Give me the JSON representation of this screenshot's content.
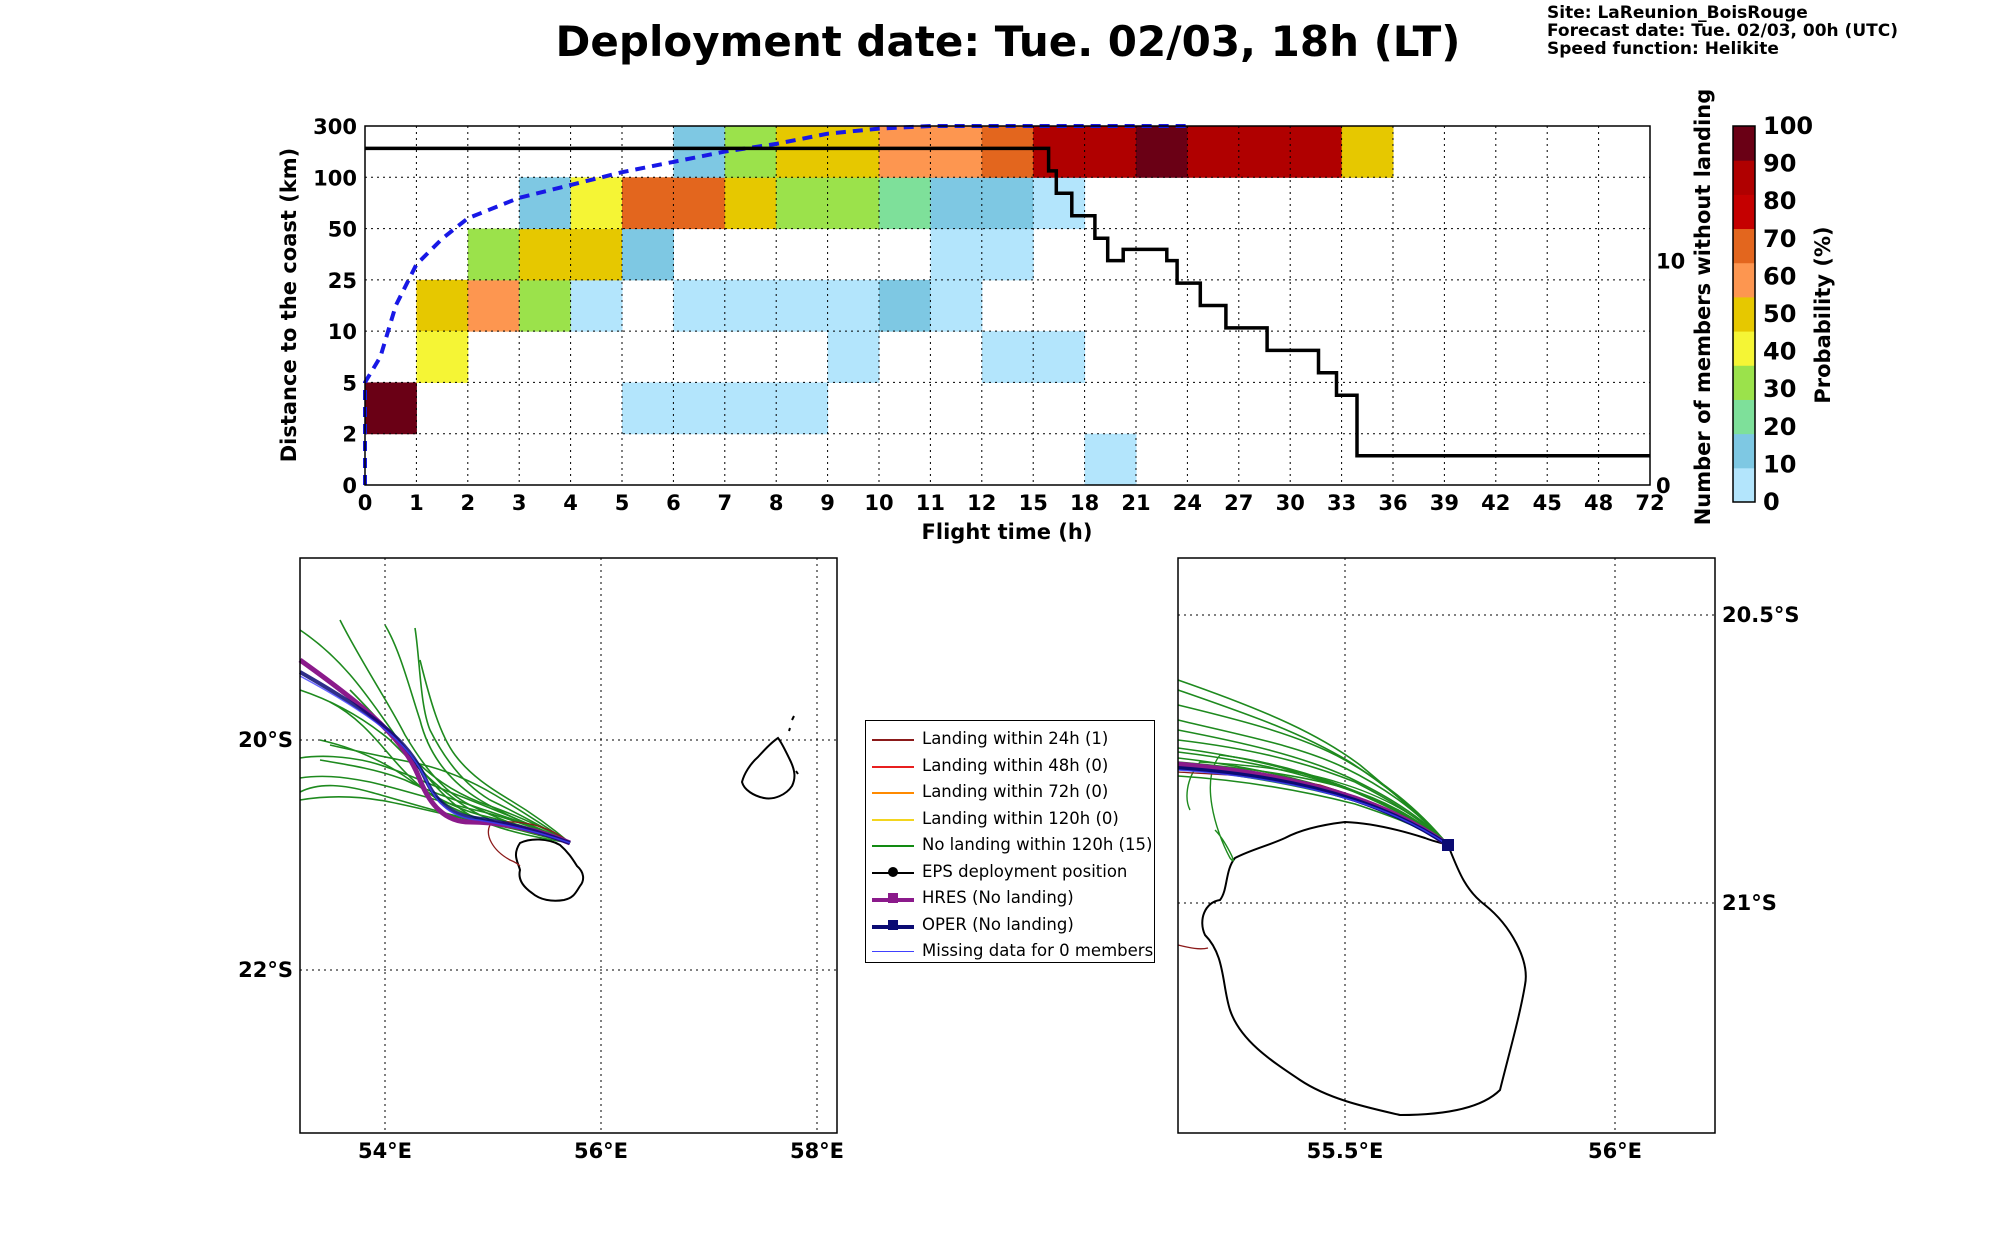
{
  "header": {
    "title": "Deployment date: Tue. 02/03, 18h (LT)",
    "site": "Site: LaReunion_BoisRouge",
    "forecast": "Forecast date: Tue. 02/03, 00h (UTC)",
    "speed": "Speed function: Helikite"
  },
  "chart_data": [
    {
      "type": "heatmap",
      "xlabel": "Flight time (h)",
      "ylabel": "Distance to the coast (km)",
      "y2label": "Number of members without landing",
      "colorbar_label": "Probability (%)",
      "x_ticks": [
        "0",
        "1",
        "2",
        "3",
        "4",
        "5",
        "6",
        "7",
        "8",
        "9",
        "10",
        "11",
        "12",
        "15",
        "18",
        "21",
        "24",
        "27",
        "30",
        "33",
        "36",
        "39",
        "42",
        "45",
        "48",
        "72"
      ],
      "y_ticks": [
        "0",
        "2",
        "5",
        "10",
        "25",
        "50",
        "100",
        "300"
      ],
      "y2_ticks": [
        "0",
        "10"
      ],
      "y2_range": [
        0,
        16
      ],
      "colorbar_ticks": [
        "0",
        "10",
        "20",
        "30",
        "40",
        "50",
        "60",
        "70",
        "80",
        "90",
        "100"
      ],
      "colorbar_colors": [
        "#b3e5fc",
        "#7ec8e3",
        "#7ee09a",
        "#9be24b",
        "#f5f535",
        "#e6c800",
        "#fd9650",
        "#e3661e",
        "#c50000",
        "#b00000",
        "#6a0015"
      ],
      "cells": [
        {
          "x": 0,
          "y": 1,
          "p": 100
        },
        {
          "x": 1,
          "y": 3,
          "p": 50
        },
        {
          "x": 1,
          "y": 2,
          "p": 40
        },
        {
          "x": 2,
          "y": 3,
          "p": 60
        },
        {
          "x": 2,
          "y": 4,
          "p": 30
        },
        {
          "x": 3,
          "y": 3,
          "p": 30
        },
        {
          "x": 3,
          "y": 4,
          "p": 50
        },
        {
          "x": 3,
          "y": 5,
          "p": 10
        },
        {
          "x": 4,
          "y": 3,
          "p": 0
        },
        {
          "x": 4,
          "y": 4,
          "p": 50
        },
        {
          "x": 4,
          "y": 5,
          "p": 40
        },
        {
          "x": 5,
          "y": 1,
          "p": 0
        },
        {
          "x": 5,
          "y": 4,
          "p": 10
        },
        {
          "x": 5,
          "y": 5,
          "p": 70
        },
        {
          "x": 6,
          "y": 1,
          "p": 0
        },
        {
          "x": 6,
          "y": 3,
          "p": 0
        },
        {
          "x": 6,
          "y": 5,
          "p": 70
        },
        {
          "x": 6,
          "y": 6,
          "p": 10
        },
        {
          "x": 7,
          "y": 1,
          "p": 0
        },
        {
          "x": 7,
          "y": 3,
          "p": 0
        },
        {
          "x": 7,
          "y": 5,
          "p": 50
        },
        {
          "x": 7,
          "y": 6,
          "p": 30
        },
        {
          "x": 8,
          "y": 1,
          "p": 0
        },
        {
          "x": 8,
          "y": 3,
          "p": 0
        },
        {
          "x": 8,
          "y": 5,
          "p": 30
        },
        {
          "x": 8,
          "y": 6,
          "p": 50
        },
        {
          "x": 9,
          "y": 2,
          "p": 0
        },
        {
          "x": 9,
          "y": 3,
          "p": 0
        },
        {
          "x": 9,
          "y": 5,
          "p": 30
        },
        {
          "x": 9,
          "y": 6,
          "p": 50
        },
        {
          "x": 10,
          "y": 3,
          "p": 10
        },
        {
          "x": 10,
          "y": 5,
          "p": 20
        },
        {
          "x": 10,
          "y": 6,
          "p": 60
        },
        {
          "x": 11,
          "y": 3,
          "p": 0
        },
        {
          "x": 11,
          "y": 4,
          "p": 0
        },
        {
          "x": 11,
          "y": 5,
          "p": 10
        },
        {
          "x": 11,
          "y": 6,
          "p": 60
        },
        {
          "x": 12,
          "y": 2,
          "p": 0
        },
        {
          "x": 12,
          "y": 4,
          "p": 0
        },
        {
          "x": 12,
          "y": 5,
          "p": 10
        },
        {
          "x": 12,
          "y": 6,
          "p": 70
        },
        {
          "x": 13,
          "y": 2,
          "p": 0
        },
        {
          "x": 13,
          "y": 5,
          "p": 0
        },
        {
          "x": 13,
          "y": 6,
          "p": 90
        },
        {
          "x": 14,
          "y": 0,
          "p": 0
        },
        {
          "x": 14,
          "y": 6,
          "p": 90
        },
        {
          "x": 15,
          "y": 6,
          "p": 100
        },
        {
          "x": 16,
          "y": 6,
          "p": 90
        },
        {
          "x": 17,
          "y": 6,
          "p": 90
        },
        {
          "x": 18,
          "y": 6,
          "p": 90
        },
        {
          "x": 19,
          "y": 6,
          "p": 50
        }
      ],
      "members_without_landing": {
        "x": [
          0,
          13.3,
          13.3,
          13.45,
          13.45,
          13.75,
          13.75,
          14.2,
          14.2,
          14.45,
          14.45,
          14.75,
          14.75,
          15.6,
          15.6,
          15.8,
          15.8,
          16.25,
          16.25,
          16.75,
          16.75,
          17.55,
          17.55,
          18.55,
          18.55,
          18.9,
          18.9,
          19.3,
          19.3,
          25
        ],
        "y": [
          15,
          15,
          14,
          14,
          13,
          13,
          12,
          12,
          11,
          11,
          10,
          10,
          10.5,
          10.5,
          10,
          10,
          9,
          9,
          8,
          8,
          7,
          7,
          6,
          6,
          5,
          5,
          4,
          4,
          1.3,
          1.3
        ]
      },
      "median_distance_curve": {
        "x": [
          0,
          0.3,
          0.6,
          1,
          1.5,
          2,
          3,
          4,
          5,
          6,
          7,
          8,
          9,
          10,
          11,
          12,
          13,
          14,
          15,
          16
        ],
        "y": [
          2,
          2.5,
          3.5,
          4.3,
          4.8,
          5.2,
          5.6,
          5.85,
          6.1,
          6.3,
          6.5,
          6.65,
          6.85,
          6.95,
          7.0,
          7.05,
          7.2,
          7.4,
          7.7,
          8.0
        ]
      }
    }
  ],
  "legend": [
    {
      "label": "Landing within 24h (1)",
      "color": "#8b1a1a",
      "style": "line"
    },
    {
      "label": "Landing within 48h (0)",
      "color": "#e81f1f",
      "style": "line"
    },
    {
      "label": "Landing within 72h (0)",
      "color": "#ff8a00",
      "style": "line"
    },
    {
      "label": "Landing within 120h (0)",
      "color": "#f3d51e",
      "style": "line"
    },
    {
      "label": "No landing within 120h (15)",
      "color": "#128a12",
      "style": "line"
    },
    {
      "label": "EPS deployment position",
      "color": "#000000",
      "style": "dot"
    },
    {
      "label": "HRES (No landing)",
      "color": "#8b1a8b",
      "style": "square"
    },
    {
      "label": "OPER (No landing)",
      "color": "#0b0b73",
      "style": "square"
    },
    {
      "label": "Missing data for 0 members",
      "color": "#4040ff",
      "style": "thin"
    }
  ],
  "map_left": {
    "x_ticks": [
      "54°E",
      "56°E",
      "58°E"
    ],
    "y_ticks": [
      "20°S",
      "22°S"
    ]
  },
  "map_right": {
    "x_ticks": [
      "55.5°E",
      "56°E"
    ],
    "y_ticks": [
      "20.5°S",
      "21°S"
    ]
  }
}
